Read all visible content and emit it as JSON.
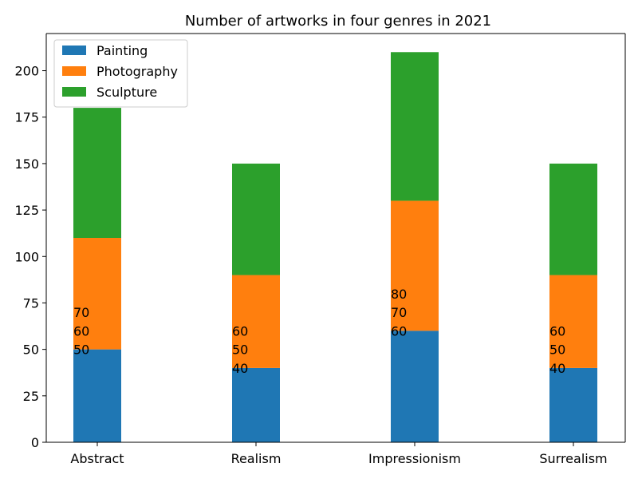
{
  "chart_data": {
    "type": "bar",
    "stacked": true,
    "title": "Number of artworks in four genres in 2021",
    "xlabel": "",
    "ylabel": "",
    "categories": [
      "Abstract",
      "Realism",
      "Impressionism",
      "Surrealism"
    ],
    "series": [
      {
        "name": "Painting",
        "values": [
          50,
          40,
          60,
          40
        ],
        "color": "#1f77b4"
      },
      {
        "name": "Photography",
        "values": [
          60,
          50,
          70,
          50
        ],
        "color": "#ff7f0e"
      },
      {
        "name": "Sculpture",
        "values": [
          70,
          60,
          80,
          60
        ],
        "color": "#2ca02c"
      }
    ],
    "ylim": [
      0,
      220
    ],
    "yticks": [
      0,
      25,
      50,
      75,
      100,
      125,
      150,
      175,
      200
    ],
    "grid": false,
    "legend_position": "top-left"
  }
}
